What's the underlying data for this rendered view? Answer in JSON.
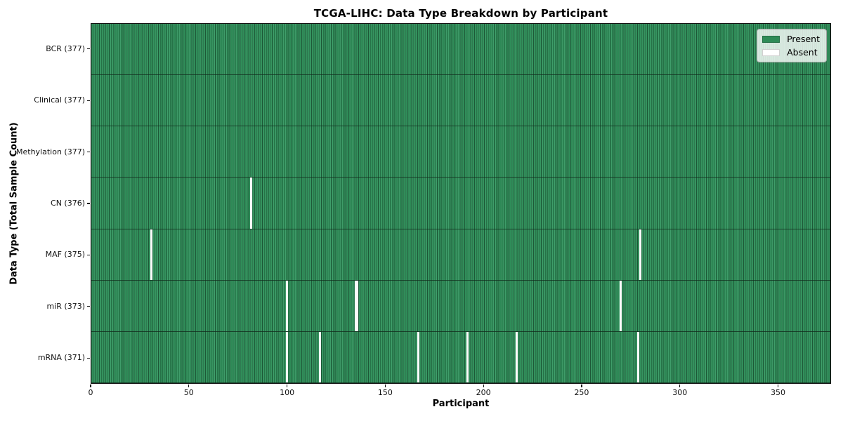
{
  "title": "TCGA-LIHC: Data Type Breakdown by Participant",
  "xlabel": "Participant",
  "ylabel": "Data Type (Total Sample Count)",
  "legend": {
    "present_label": "Present",
    "absent_label": "Absent"
  },
  "colors": {
    "present": "#2e8b57",
    "present_light": "#3f9d6a",
    "cell_edge": "#1d5837",
    "absent": "#fbfbfb"
  },
  "chart_data": {
    "type": "heatmap",
    "title": "TCGA-LIHC: Data Type Breakdown by Participant",
    "xlabel": "Participant",
    "ylabel": "Data Type (Total Sample Count)",
    "legend_entries": [
      "Present",
      "Absent"
    ],
    "legend_position": "upper right",
    "n_participants": 377,
    "x_axis": {
      "ticks": [
        0,
        50,
        100,
        150,
        200,
        250,
        300,
        350
      ],
      "min": 0,
      "max": 377
    },
    "rows": [
      {
        "label": "BCR (377)",
        "data_type": "BCR",
        "present_count": 377,
        "absent_participants": []
      },
      {
        "label": "Clinical (377)",
        "data_type": "Clinical",
        "present_count": 377,
        "absent_participants": []
      },
      {
        "label": "Methylation (377)",
        "data_type": "Methylation",
        "present_count": 377,
        "absent_participants": []
      },
      {
        "label": "CN (376)",
        "data_type": "CN",
        "present_count": 376,
        "absent_participants": [
          81
        ]
      },
      {
        "label": "MAF (375)",
        "data_type": "MAF",
        "present_count": 375,
        "absent_participants": [
          30,
          279
        ]
      },
      {
        "label": "miR (373)",
        "data_type": "miR",
        "present_count": 373,
        "absent_participants": [
          99,
          134,
          135,
          269
        ]
      },
      {
        "label": "mRNA (371)",
        "data_type": "mRNA",
        "present_count": 371,
        "absent_participants": [
          99,
          116,
          166,
          191,
          216,
          278
        ]
      }
    ]
  }
}
